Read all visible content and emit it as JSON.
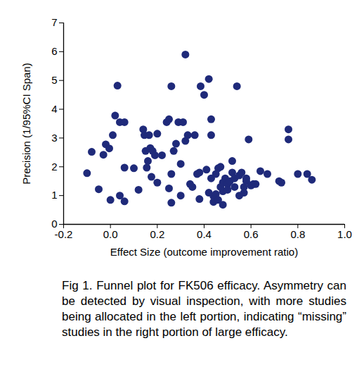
{
  "chart_data": {
    "type": "scatter",
    "x_label": "Effect Size (outcome improvement ratio)",
    "y_label": "Precision (1/95%CI Span)",
    "caption": "Fig 1. Funnel plot for FK506 efficacy. Asymmetry can be detected by visual inspection, with more studies being allocated in the left portion, indicating “missing” studies in the right portion of large efficacy.",
    "color": "#1f2a7a",
    "marker": "circle",
    "grid": false,
    "x": [
      -0.1,
      -0.08,
      -0.05,
      -0.03,
      -0.02,
      -0.005,
      0.0,
      0.01,
      0.02,
      0.03,
      0.04,
      0.06,
      0.04,
      0.06,
      0.06,
      0.1,
      0.12,
      0.14,
      0.145,
      0.15,
      0.155,
      0.16,
      0.165,
      0.17,
      0.175,
      0.18,
      0.19,
      0.2,
      0.2,
      0.22,
      0.24,
      0.25,
      0.25,
      0.26,
      0.26,
      0.26,
      0.27,
      0.28,
      0.29,
      0.3,
      0.3,
      0.32,
      0.31,
      0.32,
      0.33,
      0.34,
      0.35,
      0.36,
      0.37,
      0.38,
      0.38,
      0.385,
      0.4,
      0.42,
      0.42,
      0.43,
      0.43,
      0.43,
      0.44,
      0.44,
      0.45,
      0.46,
      0.46,
      0.47,
      0.48,
      0.48,
      0.48,
      0.49,
      0.5,
      0.5,
      0.51,
      0.52,
      0.52,
      0.53,
      0.53,
      0.54,
      0.55,
      0.55,
      0.56,
      0.57,
      0.57,
      0.58,
      0.58,
      0.59,
      0.6,
      0.61,
      0.62,
      0.64,
      0.67,
      0.72,
      0.73,
      0.76,
      0.76,
      0.8,
      0.84,
      0.86,
      0.41,
      0.45,
      0.47
    ],
    "values": [
      1.78,
      2.52,
      1.22,
      2.42,
      2.78,
      2.64,
      0.85,
      3.1,
      3.78,
      4.82,
      3.55,
      3.55,
      1.0,
      1.97,
      0.8,
      1.95,
      1.2,
      3.3,
      3.1,
      2.55,
      1.97,
      2.2,
      3.1,
      2.65,
      1.65,
      2.55,
      2.4,
      1.45,
      3.15,
      2.4,
      3.55,
      3.65,
      1.25,
      4.8,
      1.75,
      0.75,
      2.55,
      2.8,
      3.55,
      2.1,
      1.0,
      5.9,
      3.55,
      2.9,
      3.1,
      1.4,
      1.3,
      3.1,
      1.75,
      0.88,
      1.8,
      4.8,
      4.5,
      5.05,
      1.1,
      3.65,
      3.1,
      1.6,
      0.98,
      0.78,
      1.05,
      0.85,
      1.95,
      1.3,
      1.45,
      1.15,
      0.68,
      1.6,
      1.4,
      1.2,
      1.5,
      2.2,
      1.8,
      1.6,
      1.3,
      4.8,
      1.7,
      1.0,
      1.8,
      1.3,
      1.1,
      1.5,
      1.6,
      2.95,
      1.35,
      1.4,
      1.4,
      1.85,
      1.75,
      1.5,
      1.45,
      3.3,
      2.95,
      1.75,
      1.75,
      1.55,
      1.9,
      1.75,
      2.0
    ],
    "xlim": [
      -0.2,
      1.0
    ],
    "xticks": [
      -0.2,
      {
        "value": 0,
        "label": "0.0"
      },
      0.2,
      0.4,
      0.6,
      0.8,
      {
        "value": 1,
        "label": "1.0"
      }
    ],
    "ylim": [
      0,
      7
    ],
    "yticks": [
      0,
      1,
      2,
      3,
      4,
      5,
      6,
      7
    ]
  }
}
